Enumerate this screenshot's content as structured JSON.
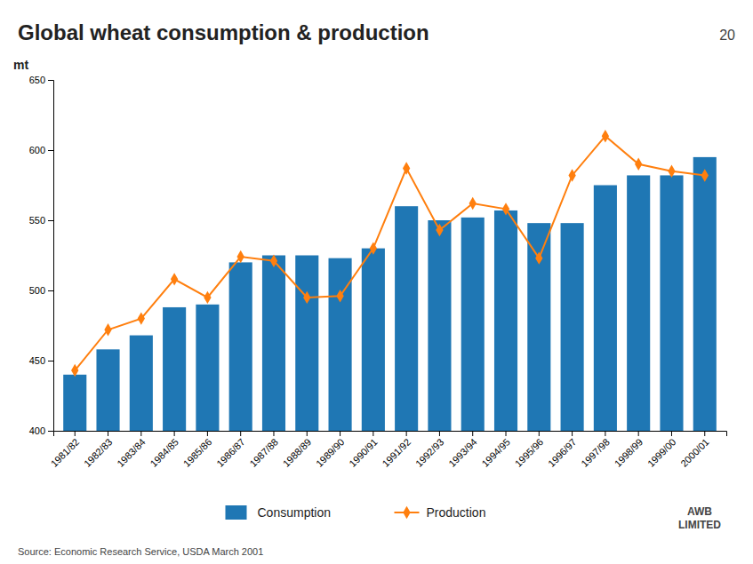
{
  "chart_data": {
    "type": "bar",
    "title": "Global wheat consumption & production",
    "ylabel": "mt",
    "annotations": [
      "20",
      "Source: Economic Research Service, USDA March 2001",
      "AWB\nLIMITED"
    ],
    "categories": [
      "1981/82",
      "1982/83",
      "1983/84",
      "1984/85",
      "1985/86",
      "1986/87",
      "1987/88",
      "1988/89",
      "1989/90",
      "1990/91",
      "1991/92",
      "1992/93",
      "1993/94",
      "1994/95",
      "1995/96",
      "1996/97",
      "1997/98",
      "1998/99",
      "1999/00",
      "2000/01"
    ],
    "series": [
      {
        "name": "Consumption",
        "type": "bar",
        "values": [
          440,
          458,
          468,
          488,
          490,
          520,
          525,
          525,
          523,
          530,
          560,
          550,
          552,
          557,
          548,
          548,
          575,
          582,
          582,
          595
        ]
      },
      {
        "name": "Production",
        "type": "line",
        "marker": "diamond",
        "values": [
          443,
          472,
          480,
          508,
          495,
          524,
          521,
          495,
          496,
          530,
          587,
          543,
          562,
          558,
          523,
          582,
          610,
          590,
          585,
          582
        ]
      }
    ],
    "ylim": [
      400,
      650
    ],
    "yticks": [
      400,
      450,
      500,
      550,
      600,
      650
    ],
    "grid": false,
    "legend": "bottom"
  }
}
